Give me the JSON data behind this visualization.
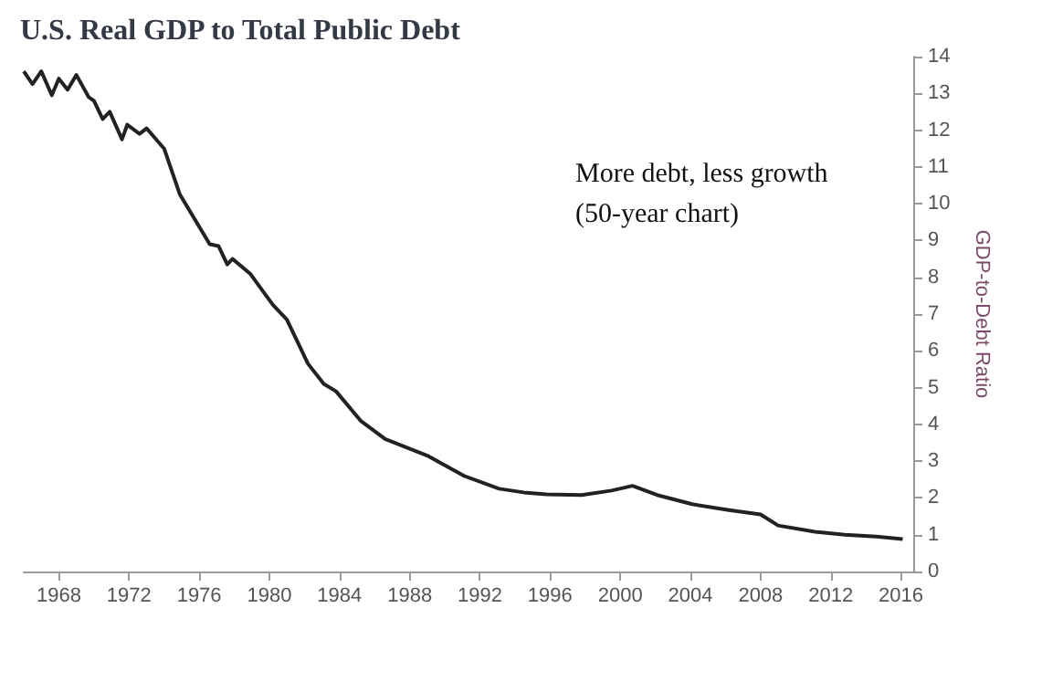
{
  "chart_data": {
    "type": "line",
    "title": "U.S. Real GDP to Total Public Debt",
    "ylabel": "GDP-to-Debt Ratio",
    "annotations": [
      "More debt, less growth",
      "(50-year chart)"
    ],
    "series": [
      {
        "color": "#222222",
        "x": [
          1966.0,
          1966.5,
          1967.0,
          1967.6,
          1968.0,
          1968.5,
          1969.0,
          1969.7,
          1970.0,
          1970.5,
          1970.9,
          1971.6,
          1971.9,
          1972.6,
          1973.0,
          1974.0,
          1974.9,
          1976.6,
          1977.1,
          1977.6,
          1977.9,
          1978.9,
          1980.2,
          1981.0,
          1982.2,
          1983.1,
          1983.8,
          1985.2,
          1986.6,
          1989.0,
          1991.1,
          1993.1,
          1994.5,
          1995.8,
          1997.8,
          1999.5,
          2000.7,
          2002.1,
          2004.1,
          2006.2,
          2008.0,
          2009.0,
          2011.1,
          2012.8,
          2014.6,
          2016.1
        ],
        "values": [
          13.6,
          13.25,
          13.6,
          12.95,
          13.4,
          13.1,
          13.5,
          12.9,
          12.8,
          12.3,
          12.5,
          11.75,
          12.15,
          11.9,
          12.05,
          11.5,
          10.25,
          8.9,
          8.85,
          8.35,
          8.5,
          8.1,
          7.25,
          6.85,
          5.65,
          5.1,
          4.9,
          4.1,
          3.6,
          3.15,
          2.6,
          2.25,
          2.15,
          2.1,
          2.08,
          2.2,
          2.33,
          2.08,
          1.83,
          1.67,
          1.55,
          1.25,
          1.08,
          1.0,
          0.95,
          0.88
        ]
      }
    ],
    "xlim": [
      1966,
      2016.7
    ],
    "xticks": [
      1968,
      1972,
      1976,
      1980,
      1984,
      1988,
      1992,
      1996,
      2000,
      2004,
      2008,
      2012,
      2016
    ],
    "ylim": [
      0,
      14
    ],
    "yticks": [
      0,
      1,
      2,
      3,
      4,
      5,
      6,
      7,
      8,
      9,
      10,
      11,
      12,
      13,
      14
    ],
    "grid": false,
    "marker": "none",
    "line_style": "solid"
  }
}
